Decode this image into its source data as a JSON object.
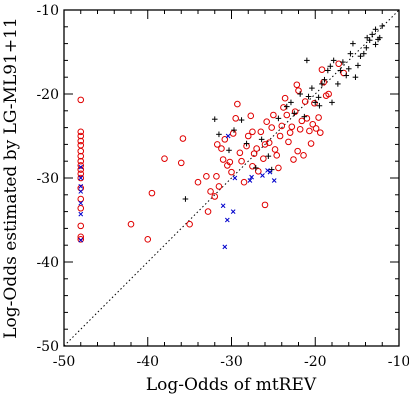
{
  "chart_data": {
    "type": "scatter",
    "xlabel": "Log-Odds of mtREV",
    "ylabel": "Log-Odds estimated by LG-ML91+11",
    "xlim": [
      -50,
      -10
    ],
    "ylim": [
      -50,
      -10
    ],
    "xticks": [
      -50,
      -40,
      -30,
      -20,
      -10
    ],
    "yticks": [
      -50,
      -40,
      -30,
      -20,
      -10
    ],
    "xtick_labels": [
      "-50",
      "-40",
      "-30",
      "-20",
      "-10"
    ],
    "ytick_labels": [
      "-50",
      "-40",
      "-30",
      "-20",
      "-10"
    ],
    "diagonal": true,
    "grid": false,
    "series": [
      {
        "marker": "circle",
        "color": "#e00000",
        "points": [
          [
            -48,
            -20.7
          ],
          [
            -48,
            -24.5
          ],
          [
            -48,
            -25.0
          ],
          [
            -48,
            -25.6
          ],
          [
            -48,
            -26.1
          ],
          [
            -48,
            -26.8
          ],
          [
            -48,
            -27.4
          ],
          [
            -48,
            -28.0
          ],
          [
            -48,
            -28.5
          ],
          [
            -48,
            -29.0
          ],
          [
            -48,
            -29.5
          ],
          [
            -48,
            -30.0
          ],
          [
            -48,
            -31.2
          ],
          [
            -48,
            -32.5
          ],
          [
            -48,
            -33.6
          ],
          [
            -48,
            -35.7
          ],
          [
            -48,
            -37.0
          ],
          [
            -48,
            -37.3
          ],
          [
            -42,
            -35.5
          ],
          [
            -40,
            -37.3
          ],
          [
            -39.5,
            -31.8
          ],
          [
            -38,
            -27.7
          ],
          [
            -36,
            -28.2
          ],
          [
            -35.8,
            -25.3
          ],
          [
            -34,
            -30.5
          ],
          [
            -33,
            -29.8
          ],
          [
            -32.5,
            -31.6
          ],
          [
            -32,
            -32.2
          ],
          [
            -31.8,
            -29.8
          ],
          [
            -31.5,
            -31.0
          ],
          [
            -31,
            -27.8
          ],
          [
            -31.2,
            -26.5
          ],
          [
            -30.8,
            -25.4
          ],
          [
            -30.5,
            -28.5
          ],
          [
            -30.2,
            -28.1
          ],
          [
            -30,
            -29.3
          ],
          [
            -29.8,
            -24.7
          ],
          [
            -29.5,
            -22.9
          ],
          [
            -29.3,
            -21.2
          ],
          [
            -29,
            -27.0
          ],
          [
            -28.8,
            -28.0
          ],
          [
            -28.5,
            -30.5
          ],
          [
            -28.2,
            -26.2
          ],
          [
            -28,
            -25.0
          ],
          [
            -27.7,
            -22.6
          ],
          [
            -27.5,
            -28.6
          ],
          [
            -27.3,
            -27.1
          ],
          [
            -27,
            -26.5
          ],
          [
            -26.8,
            -29.2
          ],
          [
            -26.5,
            -24.5
          ],
          [
            -26.2,
            -27.7
          ],
          [
            -26,
            -26.0
          ],
          [
            -25.8,
            -23.3
          ],
          [
            -25.5,
            -25.8
          ],
          [
            -25.2,
            -24.0
          ],
          [
            -25,
            -22.5
          ],
          [
            -24.8,
            -26.6
          ],
          [
            -24.6,
            -27.3
          ],
          [
            -24.4,
            -28.8
          ],
          [
            -24.2,
            -25.0
          ],
          [
            -24,
            -23.8
          ],
          [
            -23.8,
            -21.6
          ],
          [
            -23.6,
            -20.5
          ],
          [
            -23.4,
            -22.5
          ],
          [
            -23.2,
            -25.7
          ],
          [
            -23,
            -24.6
          ],
          [
            -22.8,
            -23.9
          ],
          [
            -22.6,
            -27.8
          ],
          [
            -22.4,
            -22.1
          ],
          [
            -22.2,
            -18.9
          ],
          [
            -22,
            -19.6
          ],
          [
            -21.8,
            -24.2
          ],
          [
            -21.6,
            -23.2
          ],
          [
            -21.4,
            -27.3
          ],
          [
            -21.2,
            -20.9
          ],
          [
            -21,
            -22.9
          ],
          [
            -20.7,
            -24.4
          ],
          [
            -20.5,
            -25.9
          ],
          [
            -20.3,
            -23.6
          ],
          [
            -20.1,
            -21.1
          ],
          [
            -19.9,
            -24.1
          ],
          [
            -19.6,
            -22.8
          ],
          [
            -19.4,
            -24.6
          ],
          [
            -19.2,
            -17.1
          ],
          [
            -19,
            -18.6
          ],
          [
            -18.7,
            -20.2
          ],
          [
            -18.4,
            -20.0
          ],
          [
            -17.2,
            -16.4
          ],
          [
            -16.6,
            -17.5
          ],
          [
            -35,
            -35.5
          ],
          [
            -32.8,
            -34.0
          ],
          [
            -26,
            -33.2
          ],
          [
            -22.1,
            -26.8
          ],
          [
            -27.5,
            -24.5
          ],
          [
            -31.7,
            -26.0
          ]
        ]
      },
      {
        "marker": "plus",
        "color": "#000000",
        "points": [
          [
            -35.5,
            -32.5
          ],
          [
            -32,
            -23.0
          ],
          [
            -31.5,
            -24.8
          ],
          [
            -30.3,
            -26.7
          ],
          [
            -29.7,
            -24.3
          ],
          [
            -28.8,
            -23.1
          ],
          [
            -28.2,
            -25.9
          ],
          [
            -27.1,
            -28.8
          ],
          [
            -26.4,
            -25.4
          ],
          [
            -25.6,
            -27.4
          ],
          [
            -25.2,
            -29.0
          ],
          [
            -24.4,
            -22.9
          ],
          [
            -23.4,
            -21.5
          ],
          [
            -22.9,
            -21.0
          ],
          [
            -22.5,
            -22.3
          ],
          [
            -21.8,
            -20.0
          ],
          [
            -21.3,
            -22.7
          ],
          [
            -20.8,
            -20.3
          ],
          [
            -20.4,
            -19.3
          ],
          [
            -20.0,
            -21.0
          ],
          [
            -19.6,
            -20.4
          ],
          [
            -19.2,
            -18.8
          ],
          [
            -18.9,
            -18.3
          ],
          [
            -18.5,
            -17.2
          ],
          [
            -18.2,
            -16.7
          ],
          [
            -17.8,
            -16.0
          ],
          [
            -17.3,
            -18.8
          ],
          [
            -17.0,
            -17.2
          ],
          [
            -16.7,
            -16.2
          ],
          [
            -16.3,
            -17.8
          ],
          [
            -15.8,
            -15.2
          ],
          [
            -15.5,
            -14.0
          ],
          [
            -15.2,
            -18.0
          ],
          [
            -14.9,
            -16.6
          ],
          [
            -14.6,
            -15.5
          ],
          [
            -14.2,
            -15.2
          ],
          [
            -13.9,
            -14.5
          ],
          [
            -13.5,
            -13.6
          ],
          [
            -13.2,
            -12.9
          ],
          [
            -12.8,
            -12.3
          ],
          [
            -12.5,
            -13.5
          ],
          [
            -12.3,
            -13.3
          ],
          [
            -12.0,
            -11.9
          ],
          [
            -19.5,
            -21.4
          ],
          [
            -21.0,
            -16.0
          ],
          [
            -18.0,
            -21.0
          ],
          [
            -16.0,
            -17.0
          ],
          [
            -12.8,
            -14.1
          ],
          [
            -13.8,
            -13.3
          ]
        ]
      },
      {
        "marker": "cross",
        "color": "#0000cc",
        "points": [
          [
            -48,
            -31.0
          ],
          [
            -48,
            -31.6
          ],
          [
            -48,
            -33.0
          ],
          [
            -48,
            -34.3
          ],
          [
            -48,
            -37.4
          ],
          [
            -48,
            -30.0
          ],
          [
            -48,
            -28.7
          ],
          [
            -31.0,
            -33.3
          ],
          [
            -30.5,
            -35.0
          ],
          [
            -30.8,
            -38.2
          ],
          [
            -29.8,
            -34.0
          ],
          [
            -29.6,
            -30.0
          ],
          [
            -27.8,
            -30.3
          ],
          [
            -26.3,
            -29.7
          ],
          [
            -25.7,
            -29.1
          ],
          [
            -25.4,
            -29.3
          ],
          [
            -24.9,
            -30.3
          ],
          [
            -30.4,
            -25.0
          ],
          [
            -27.6,
            -29.9
          ]
        ]
      }
    ]
  }
}
